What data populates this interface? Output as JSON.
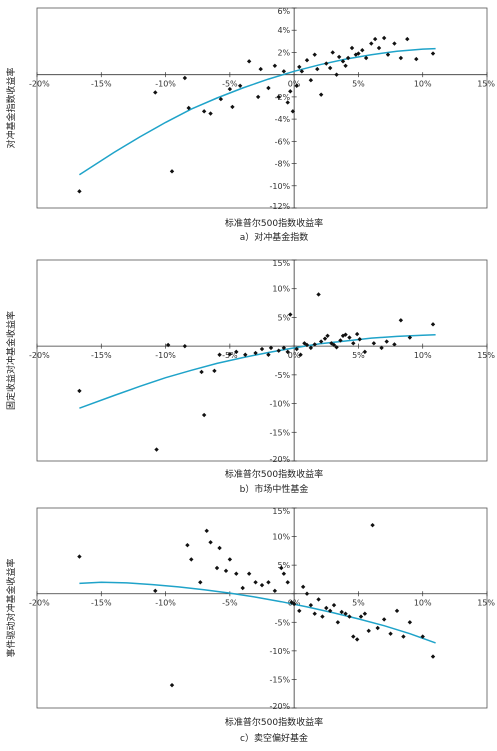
{
  "chart_data": [
    {
      "type": "scatter",
      "ylabel": "对冲基金指数收益率",
      "xlabel": "标准普尔500指数收益率",
      "caption": "a）对冲基金指数",
      "xlim": [
        -20,
        15
      ],
      "ylim": [
        -12,
        6
      ],
      "xticks": [
        -20,
        -15,
        -10,
        -5,
        0,
        5,
        10,
        15
      ],
      "yticks": [
        -12,
        -10,
        -8,
        -6,
        -4,
        -2,
        0,
        2,
        4,
        6
      ],
      "xtick_labels": [
        "-20%",
        "-15%",
        "-10%",
        "-5%",
        "0%",
        "5%",
        "10%",
        "15%"
      ],
      "ytick_labels": [
        "-12%",
        "-10%",
        "-8%",
        "-6%",
        "-4%",
        "-2%",
        "0%",
        "2%",
        "4%",
        "6%"
      ],
      "trend_color": "#1fa3c9",
      "point_color": "#111111",
      "points": [
        [
          -16.7,
          -10.5
        ],
        [
          -9.5,
          -8.7
        ],
        [
          -10.8,
          -1.6
        ],
        [
          -8.5,
          -0.3
        ],
        [
          -8.2,
          -3.0
        ],
        [
          -7.0,
          -3.3
        ],
        [
          -6.5,
          -3.5
        ],
        [
          -5.7,
          -2.2
        ],
        [
          -5.0,
          -1.3
        ],
        [
          -4.8,
          -2.9
        ],
        [
          -4.2,
          -1.0
        ],
        [
          -3.5,
          1.2
        ],
        [
          -2.8,
          -2.0
        ],
        [
          -2.6,
          0.5
        ],
        [
          -2.0,
          -1.2
        ],
        [
          -1.5,
          0.8
        ],
        [
          -1.2,
          -2.0
        ],
        [
          -0.8,
          0.3
        ],
        [
          -0.5,
          -2.5
        ],
        [
          -0.3,
          -1.5
        ],
        [
          -0.1,
          -3.3
        ],
        [
          0.2,
          -1.0
        ],
        [
          0.4,
          0.7
        ],
        [
          0.6,
          0.3
        ],
        [
          1.0,
          1.3
        ],
        [
          1.3,
          -0.5
        ],
        [
          1.6,
          1.8
        ],
        [
          1.8,
          0.5
        ],
        [
          2.1,
          -1.8
        ],
        [
          2.5,
          1.0
        ],
        [
          2.8,
          0.6
        ],
        [
          3.0,
          2.0
        ],
        [
          3.3,
          0.0
        ],
        [
          3.5,
          1.6
        ],
        [
          3.8,
          1.2
        ],
        [
          4.0,
          0.8
        ],
        [
          4.2,
          1.5
        ],
        [
          4.5,
          2.4
        ],
        [
          4.8,
          1.8
        ],
        [
          5.0,
          1.9
        ],
        [
          5.3,
          2.2
        ],
        [
          5.6,
          1.5
        ],
        [
          6.0,
          2.8
        ],
        [
          6.3,
          3.2
        ],
        [
          6.6,
          2.4
        ],
        [
          7.0,
          3.3
        ],
        [
          7.3,
          1.8
        ],
        [
          7.8,
          2.8
        ],
        [
          8.3,
          1.5
        ],
        [
          8.8,
          3.2
        ],
        [
          9.5,
          1.4
        ],
        [
          10.8,
          1.9
        ]
      ],
      "trend": [
        [
          -16.7,
          -9.0
        ],
        [
          -14,
          -7.0
        ],
        [
          -12,
          -5.6
        ],
        [
          -10,
          -4.3
        ],
        [
          -8,
          -3.1
        ],
        [
          -6,
          -2.1
        ],
        [
          -4,
          -1.2
        ],
        [
          -2,
          -0.4
        ],
        [
          0,
          0.3
        ],
        [
          2,
          0.9
        ],
        [
          4,
          1.4
        ],
        [
          6,
          1.8
        ],
        [
          8,
          2.1
        ],
        [
          10,
          2.3
        ],
        [
          11,
          2.35
        ]
      ]
    },
    {
      "type": "scatter",
      "ylabel": "固定收益对冲基金收益率",
      "xlabel": "标准普尔500指数收益率",
      "caption": "b）市场中性基金",
      "xlim": [
        -20,
        15
      ],
      "ylim": [
        -20,
        15
      ],
      "xticks": [
        -20,
        -15,
        -10,
        -5,
        0,
        5,
        10,
        15
      ],
      "yticks": [
        -20,
        -15,
        -10,
        -5,
        0,
        5,
        10,
        15
      ],
      "xtick_labels": [
        "-20%",
        "-15%",
        "-10%",
        "-5%",
        "0%",
        "5%",
        "10%",
        "15%"
      ],
      "ytick_labels": [
        "-20%",
        "-15%",
        "-10%",
        "-5%",
        "0%",
        "5%",
        "10%",
        "15%"
      ],
      "trend_color": "#1fa3c9",
      "point_color": "#111111",
      "points": [
        [
          -16.7,
          -7.8
        ],
        [
          -10.7,
          -18.0
        ],
        [
          -9.8,
          0.2
        ],
        [
          -8.5,
          0.0
        ],
        [
          -7.0,
          -12.0
        ],
        [
          -7.2,
          -4.5
        ],
        [
          -6.2,
          -4.3
        ],
        [
          -5.8,
          -1.5
        ],
        [
          -5.0,
          -1.4
        ],
        [
          -4.5,
          -1.0
        ],
        [
          -3.8,
          -1.5
        ],
        [
          -3.0,
          -1.2
        ],
        [
          -2.5,
          -0.5
        ],
        [
          -2.0,
          -1.5
        ],
        [
          -1.8,
          -0.3
        ],
        [
          -1.2,
          -0.8
        ],
        [
          -0.8,
          -0.3
        ],
        [
          -0.5,
          -1.0
        ],
        [
          -0.3,
          5.5
        ],
        [
          0.2,
          -0.5
        ],
        [
          0.5,
          -1.5
        ],
        [
          0.8,
          0.5
        ],
        [
          1.0,
          0.2
        ],
        [
          1.3,
          -0.3
        ],
        [
          1.6,
          0.3
        ],
        [
          1.9,
          9.0
        ],
        [
          2.1,
          0.8
        ],
        [
          2.4,
          1.3
        ],
        [
          2.6,
          1.8
        ],
        [
          2.9,
          0.5
        ],
        [
          3.1,
          0.2
        ],
        [
          3.3,
          -0.2
        ],
        [
          3.6,
          1.0
        ],
        [
          3.8,
          1.8
        ],
        [
          4.0,
          2.0
        ],
        [
          4.3,
          1.5
        ],
        [
          4.6,
          0.5
        ],
        [
          4.9,
          2.1
        ],
        [
          5.1,
          1.2
        ],
        [
          5.5,
          -1.0
        ],
        [
          6.2,
          0.5
        ],
        [
          6.8,
          -0.3
        ],
        [
          7.2,
          0.8
        ],
        [
          7.8,
          0.3
        ],
        [
          8.3,
          4.5
        ],
        [
          9.0,
          1.5
        ],
        [
          10.8,
          3.8
        ]
      ],
      "trend": [
        [
          -16.7,
          -10.8
        ],
        [
          -14,
          -8.6
        ],
        [
          -12,
          -7.0
        ],
        [
          -10,
          -5.5
        ],
        [
          -8,
          -4.2
        ],
        [
          -6,
          -3.0
        ],
        [
          -4,
          -2.0
        ],
        [
          -2,
          -1.1
        ],
        [
          0,
          -0.3
        ],
        [
          2,
          0.4
        ],
        [
          4,
          0.9
        ],
        [
          6,
          1.4
        ],
        [
          8,
          1.7
        ],
        [
          10,
          1.9
        ],
        [
          11,
          2.0
        ]
      ]
    },
    {
      "type": "scatter",
      "ylabel": "事件驱动对冲基金收益率",
      "xlabel": "标准普尔500指数收益率",
      "caption": "c）卖空偏好基金",
      "xlim": [
        -20,
        15
      ],
      "ylim": [
        -20,
        15
      ],
      "xticks": [
        -20,
        -15,
        -10,
        -5,
        0,
        5,
        10,
        15
      ],
      "yticks": [
        -20,
        -15,
        -10,
        -5,
        0,
        5,
        10,
        15
      ],
      "xtick_labels": [
        "-20%",
        "-15%",
        "-10%",
        "-5%",
        "0%",
        "5%",
        "10%",
        "15%"
      ],
      "ytick_labels": [
        "-20%",
        "-15%",
        "-10%",
        "-5%",
        "0%",
        "5%",
        "10%",
        "15%"
      ],
      "trend_color": "#1fa3c9",
      "point_color": "#111111",
      "points": [
        [
          -16.7,
          6.5
        ],
        [
          -10.8,
          0.5
        ],
        [
          -9.5,
          -16.0
        ],
        [
          -8.3,
          8.5
        ],
        [
          -8.0,
          6.0
        ],
        [
          -7.3,
          2.0
        ],
        [
          -6.8,
          11.0
        ],
        [
          -6.5,
          9.0
        ],
        [
          -6.0,
          4.5
        ],
        [
          -5.8,
          8.0
        ],
        [
          -5.3,
          4.0
        ],
        [
          -5.0,
          6.0
        ],
        [
          -4.5,
          3.5
        ],
        [
          -4.0,
          1.0
        ],
        [
          -3.5,
          3.5
        ],
        [
          -3.0,
          2.0
        ],
        [
          -2.5,
          1.5
        ],
        [
          -2.0,
          2.0
        ],
        [
          -1.5,
          0.5
        ],
        [
          -1.0,
          4.5
        ],
        [
          -0.8,
          3.5
        ],
        [
          -0.5,
          2.0
        ],
        [
          -0.2,
          -1.5
        ],
        [
          0.0,
          -1.8
        ],
        [
          0.4,
          -3.0
        ],
        [
          0.7,
          1.2
        ],
        [
          1.0,
          0.0
        ],
        [
          1.3,
          -2.0
        ],
        [
          1.6,
          -3.5
        ],
        [
          1.9,
          -1.0
        ],
        [
          2.2,
          -4.0
        ],
        [
          2.5,
          -2.5
        ],
        [
          2.8,
          -3.0
        ],
        [
          3.1,
          -2.0
        ],
        [
          3.4,
          -5.0
        ],
        [
          3.7,
          -3.2
        ],
        [
          4.0,
          -3.5
        ],
        [
          4.3,
          -4.0
        ],
        [
          4.6,
          -7.5
        ],
        [
          4.9,
          -8.0
        ],
        [
          5.2,
          -4.0
        ],
        [
          5.5,
          -3.5
        ],
        [
          5.8,
          -6.5
        ],
        [
          6.1,
          12.0
        ],
        [
          6.5,
          -6.0
        ],
        [
          7.0,
          -4.5
        ],
        [
          7.5,
          -7.0
        ],
        [
          8.0,
          -3.0
        ],
        [
          8.5,
          -7.5
        ],
        [
          9.0,
          -5.0
        ],
        [
          10.0,
          -7.5
        ],
        [
          10.8,
          -11.0
        ]
      ],
      "trend": [
        [
          -16.7,
          1.8
        ],
        [
          -15,
          2.0
        ],
        [
          -13,
          1.9
        ],
        [
          -11,
          1.6
        ],
        [
          -9,
          1.2
        ],
        [
          -7,
          0.7
        ],
        [
          -5,
          0.1
        ],
        [
          -3,
          -0.6
        ],
        [
          -1,
          -1.4
        ],
        [
          1,
          -2.3
        ],
        [
          3,
          -3.3
        ],
        [
          5,
          -4.4
        ],
        [
          7,
          -5.6
        ],
        [
          9,
          -7.0
        ],
        [
          11,
          -8.6
        ]
      ]
    }
  ]
}
